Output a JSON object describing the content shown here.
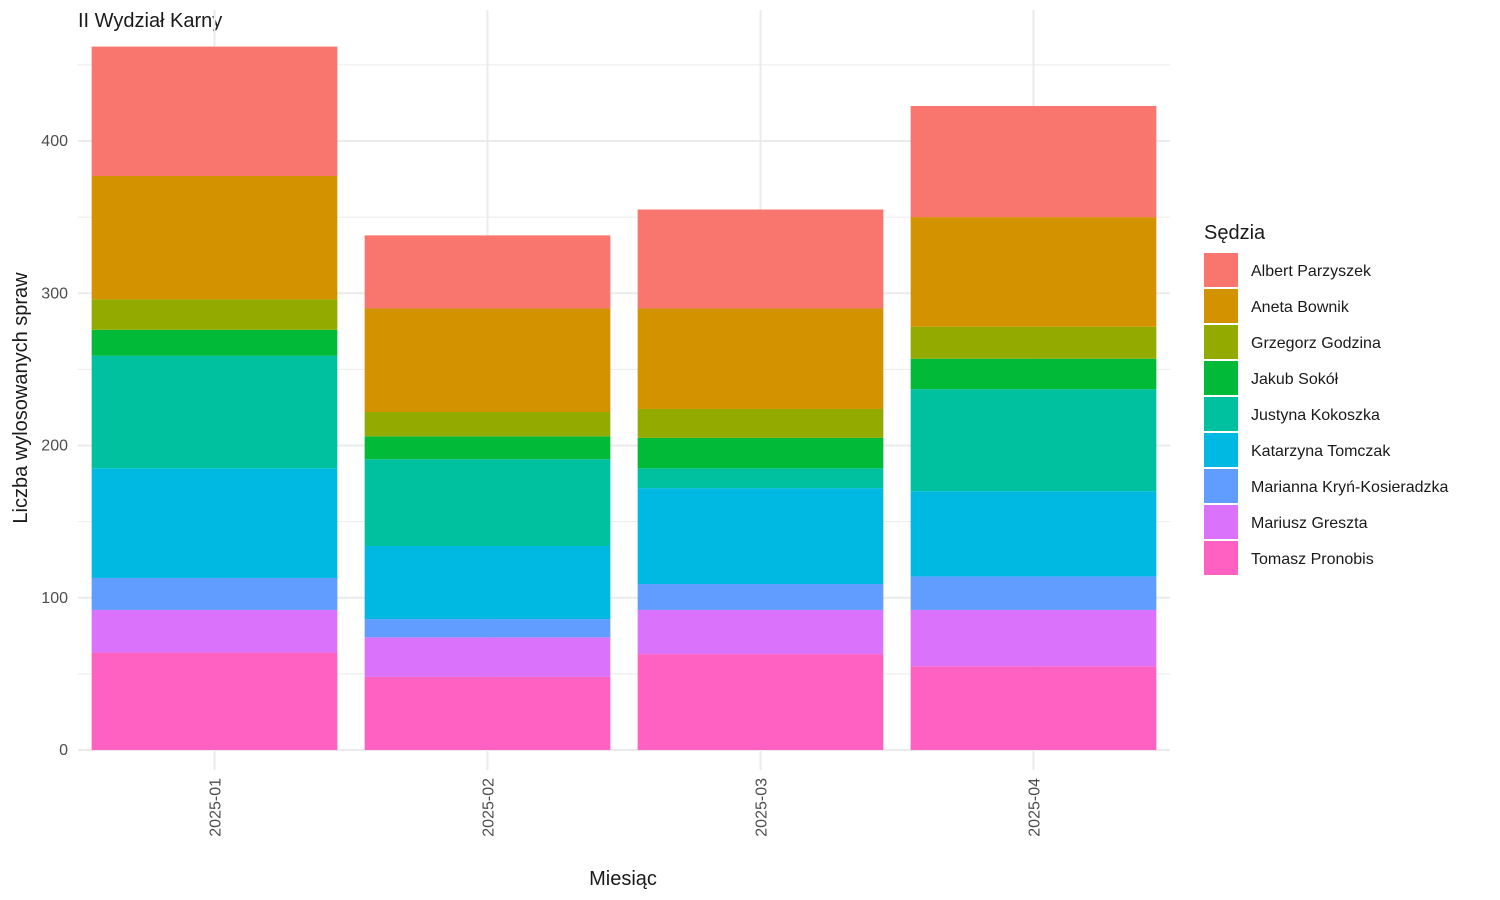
{
  "chart_data": {
    "type": "bar",
    "stacked": true,
    "title": "II Wydział Karny",
    "xlabel": "Miesiąc",
    "ylabel": "Liczba wylosowanych spraw",
    "ylim": [
      0,
      485
    ],
    "yticks": [
      0,
      100,
      200,
      300,
      400
    ],
    "grid": true,
    "legend_position": "right",
    "legend_title": "Sędzia",
    "categories": [
      "2025-01",
      "2025-02",
      "2025-03",
      "2025-04"
    ],
    "series": [
      {
        "name": "Tomasz Pronobis",
        "color": "#FF61C3",
        "values": [
          64,
          48,
          63,
          55
        ]
      },
      {
        "name": "Mariusz Greszta",
        "color": "#DB72FB",
        "values": [
          28,
          26,
          29,
          37
        ]
      },
      {
        "name": "Marianna Kryń-Kosieradzka",
        "color": "#619CFF",
        "values": [
          21,
          12,
          17,
          22
        ]
      },
      {
        "name": "Katarzyna Tomczak",
        "color": "#00B9E3",
        "values": [
          72,
          48,
          63,
          56
        ]
      },
      {
        "name": "Justyna Kokoszka",
        "color": "#00C19F",
        "values": [
          74,
          57,
          13,
          67
        ]
      },
      {
        "name": "Jakub Sokół",
        "color": "#00BA38",
        "values": [
          17,
          15,
          20,
          20
        ]
      },
      {
        "name": "Grzegorz Godzina",
        "color": "#93AA00",
        "values": [
          20,
          16,
          19,
          21
        ]
      },
      {
        "name": "Aneta Bownik",
        "color": "#D39200",
        "values": [
          81,
          68,
          66,
          72
        ]
      },
      {
        "name": "Albert Parzyszek",
        "color": "#F8766D",
        "values": [
          85,
          48,
          65,
          73
        ]
      }
    ],
    "legend_order": [
      "Albert Parzyszek",
      "Aneta Bownik",
      "Grzegorz Godzina",
      "Jakub Sokół",
      "Justyna Kokoszka",
      "Katarzyna Tomczak",
      "Marianna Kryń-Kosieradzka",
      "Mariusz Greszta",
      "Tomasz Pronobis"
    ]
  }
}
